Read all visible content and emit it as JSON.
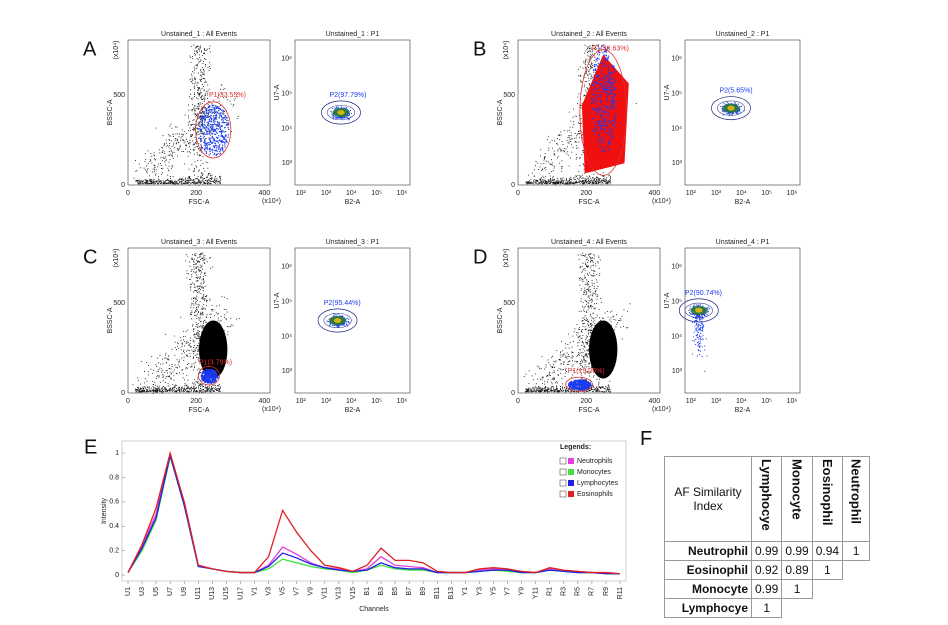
{
  "panels": [
    {
      "letter": "A",
      "scatter": {
        "title": "Unstained_1 : All Events",
        "gate": "P1(33.55%)"
      },
      "density": {
        "title": "Unstained_1 : P1",
        "gate": "P2(97.79%)"
      }
    },
    {
      "letter": "B",
      "scatter": {
        "title": "Unstained_2 : All Events",
        "gate": "P1(36.63%)"
      },
      "density": {
        "title": "Unstained_2 : P1",
        "gate": "P2(5.65%)"
      }
    },
    {
      "letter": "C",
      "scatter": {
        "title": "Unstained_3 : All Events",
        "gate": "P1(3.79%)"
      },
      "density": {
        "title": "Unstained_3 : P1",
        "gate": "P2(95.44%)"
      }
    },
    {
      "letter": "D",
      "scatter": {
        "title": "Unstained_4 : All Events",
        "gate": "P1(19.06%)"
      },
      "density": {
        "title": "Unstained_4 : P1",
        "gate": "P2(90.74%)"
      }
    }
  ],
  "axes": {
    "scatter_x": "FSC-A",
    "scatter_y": "BSSC-A",
    "density_x": "B2-A",
    "density_y": "U7-A",
    "linear_x_ticks": [
      "0",
      "200",
      "400"
    ],
    "linear_y_ticks": [
      "0",
      "500"
    ],
    "multiplier": "(x10⁴)",
    "log_x_ticks": [
      "10²",
      "10³",
      "10⁴",
      "10⁵",
      "10⁶"
    ],
    "log_y_ticks": [
      "10³",
      "10⁴",
      "10⁵",
      "10⁶"
    ]
  },
  "chart_letter": "E",
  "chart_data": {
    "type": "line",
    "xlabel": "Channels",
    "ylabel": "Intensity",
    "legend_title": "Legends:",
    "legend": "upper right",
    "categories": [
      "U1",
      "U3",
      "U5",
      "U7",
      "U9",
      "U11",
      "U13",
      "U15",
      "U17",
      "V1",
      "V3",
      "V5",
      "V7",
      "V9",
      "V11",
      "V13",
      "V15",
      "B1",
      "B3",
      "B5",
      "B7",
      "B9",
      "B11",
      "B13",
      "Y1",
      "Y3",
      "Y5",
      "Y7",
      "Y9",
      "Y11",
      "R1",
      "R3",
      "R5",
      "R7",
      "R9",
      "R11"
    ],
    "ylim": [
      0,
      1.05
    ],
    "yticks": [
      0,
      0.2,
      0.4,
      0.6,
      0.8,
      1
    ],
    "series": [
      {
        "name": "Neutrophils",
        "color": "#e040e0",
        "values": [
          0.02,
          0.24,
          0.5,
          0.98,
          0.6,
          0.08,
          0.05,
          0.03,
          0.02,
          0.02,
          0.08,
          0.23,
          0.17,
          0.1,
          0.06,
          0.05,
          0.03,
          0.05,
          0.15,
          0.08,
          0.07,
          0.06,
          0.02,
          0.02,
          0.02,
          0.04,
          0.05,
          0.04,
          0.03,
          0.02,
          0.05,
          0.03,
          0.03,
          0.02,
          0.02,
          0.01
        ]
      },
      {
        "name": "Monocytes",
        "color": "#40e040",
        "values": [
          0.02,
          0.2,
          0.45,
          0.97,
          0.58,
          0.07,
          0.05,
          0.03,
          0.02,
          0.02,
          0.05,
          0.13,
          0.1,
          0.07,
          0.05,
          0.04,
          0.02,
          0.04,
          0.08,
          0.05,
          0.04,
          0.04,
          0.02,
          0.02,
          0.02,
          0.03,
          0.04,
          0.03,
          0.02,
          0.02,
          0.04,
          0.03,
          0.02,
          0.02,
          0.01,
          0.01
        ]
      },
      {
        "name": "Lymphocytes",
        "color": "#2020e0",
        "values": [
          0.02,
          0.22,
          0.47,
          0.98,
          0.57,
          0.07,
          0.05,
          0.03,
          0.02,
          0.02,
          0.07,
          0.18,
          0.14,
          0.09,
          0.06,
          0.04,
          0.03,
          0.04,
          0.1,
          0.06,
          0.05,
          0.05,
          0.02,
          0.02,
          0.02,
          0.03,
          0.04,
          0.04,
          0.02,
          0.02,
          0.04,
          0.03,
          0.02,
          0.02,
          0.01,
          0.01
        ]
      },
      {
        "name": "Eosinophils",
        "color": "#e02020",
        "values": [
          0.02,
          0.25,
          0.55,
          1,
          0.6,
          0.08,
          0.05,
          0.03,
          0.02,
          0.02,
          0.15,
          0.53,
          0.35,
          0.2,
          0.08,
          0.06,
          0.03,
          0.08,
          0.22,
          0.12,
          0.12,
          0.1,
          0.03,
          0.02,
          0.02,
          0.05,
          0.06,
          0.05,
          0.03,
          0.02,
          0.06,
          0.04,
          0.03,
          0.02,
          0.02,
          0.01
        ]
      }
    ]
  },
  "table_letter": "F",
  "table": {
    "corner": "AF Similarity Index",
    "columns": [
      "Lymphocye",
      "Monocyte",
      "Eosinophil",
      "Neutrophil"
    ],
    "rows": [
      {
        "label": "Neutrophil",
        "values": [
          0.99,
          0.99,
          0.94,
          1
        ]
      },
      {
        "label": "Eosinophil",
        "values": [
          0.92,
          0.89,
          1
        ]
      },
      {
        "label": "Monocyte",
        "values": [
          0.99,
          1
        ]
      },
      {
        "label": "Lymphocye",
        "values": [
          1
        ]
      }
    ]
  }
}
